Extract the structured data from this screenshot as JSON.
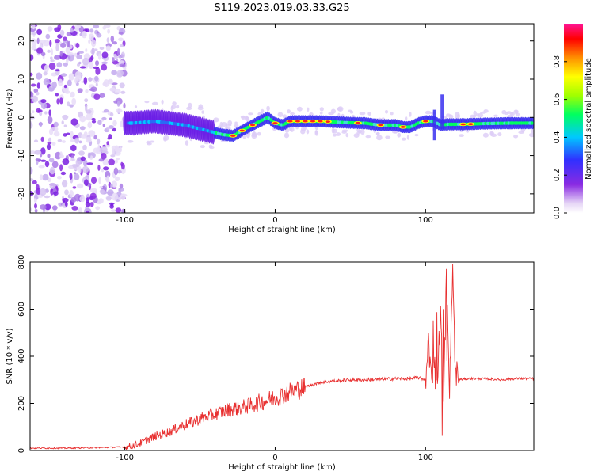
{
  "title": "S119.2023.019.03.33.G25",
  "chart_data": [
    {
      "type": "heatmap",
      "xlabel": "Height of straight line (km)",
      "ylabel": "Frequency (Hz)",
      "xlim": [
        -163,
        172
      ],
      "ylim": [
        -25,
        24.5
      ],
      "xticks": [
        -100,
        0,
        100
      ],
      "yticks": [
        -20,
        -10,
        0,
        10,
        20
      ],
      "colorbar": {
        "label": "Normalized spectral amplitude",
        "range": [
          0.0,
          1.0
        ],
        "ticks": [
          "0.0",
          "0.2",
          "0.4",
          "0.6",
          "0.8"
        ],
        "colormap": [
          "#d8c8f0",
          "#8a2be2",
          "#3030ff",
          "#00c8ff",
          "#00ff60",
          "#a0ff00",
          "#ffff00",
          "#ff9000",
          "#ff0000",
          "#ff1493"
        ]
      },
      "ridge": {
        "x": [
          -95,
          -80,
          -60,
          -45,
          -35,
          -28,
          -20,
          -10,
          -5,
          0,
          5,
          10,
          20,
          30,
          40,
          50,
          60,
          65,
          70,
          80,
          85,
          90,
          95,
          100,
          105,
          110,
          115,
          125,
          140,
          155,
          170
        ],
        "freq": [
          -1.5,
          -1.0,
          -2.0,
          -3.5,
          -4.5,
          -4.8,
          -3.0,
          -1.0,
          0.0,
          -1.5,
          -2.0,
          -1.0,
          -1.0,
          -1.0,
          -1.2,
          -1.4,
          -1.5,
          -1.8,
          -2.0,
          -2.0,
          -2.5,
          -2.5,
          -1.5,
          -1.0,
          -1.0,
          -2.0,
          -1.8,
          -1.8,
          -1.6,
          -1.5,
          -1.5
        ]
      },
      "noise_region": [
        -163,
        -100
      ]
    },
    {
      "type": "line",
      "xlabel": "Height of straight line (km)",
      "ylabel": "SNR (10 * v/v)",
      "xlim": [
        -163,
        172
      ],
      "ylim": [
        0,
        800
      ],
      "xticks": [
        -100,
        0,
        100
      ],
      "yticks": [
        0,
        200,
        400,
        600,
        800
      ],
      "color": "#e83030",
      "x": [
        -163,
        -140,
        -120,
        -100,
        -95,
        -90,
        -85,
        -80,
        -75,
        -70,
        -65,
        -60,
        -55,
        -50,
        -45,
        -40,
        -35,
        -30,
        -25,
        -20,
        -15,
        -10,
        -5,
        0,
        5,
        10,
        15,
        20,
        25,
        30,
        40,
        50,
        60,
        70,
        80,
        90,
        95,
        100,
        102,
        104,
        106,
        108,
        110,
        112,
        114,
        116,
        118,
        120,
        130,
        140,
        150,
        160,
        172
      ],
      "y": [
        10,
        10,
        12,
        15,
        20,
        30,
        45,
        60,
        70,
        80,
        95,
        110,
        120,
        135,
        145,
        155,
        165,
        175,
        180,
        185,
        195,
        205,
        215,
        225,
        235,
        250,
        260,
        270,
        280,
        290,
        295,
        300,
        300,
        302,
        305,
        305,
        310,
        300,
        450,
        280,
        380,
        330,
        600,
        200,
        760,
        260,
        790,
        300,
        305,
        305,
        300,
        305,
        305
      ]
    }
  ]
}
